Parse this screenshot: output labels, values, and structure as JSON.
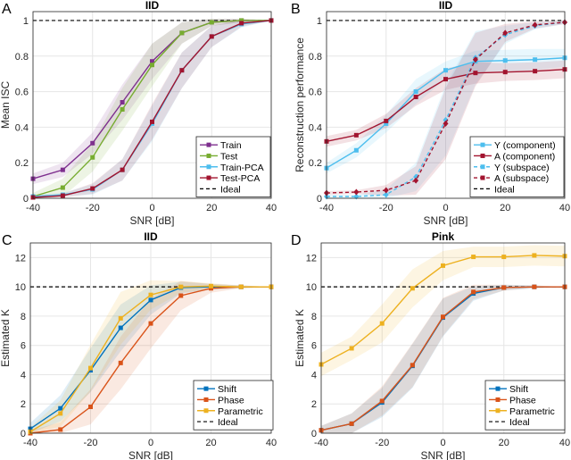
{
  "chart_data": [
    {
      "panel": "A",
      "type": "line",
      "title": "IID",
      "xlabel": "SNR [dB]",
      "ylabel": "Mean ISC",
      "xlim": [
        -40,
        40
      ],
      "ylim": [
        0,
        1.05
      ],
      "xticks": [
        -40,
        -20,
        0,
        20,
        40
      ],
      "yticks": [
        0,
        0.2,
        0.4,
        0.6,
        0.8,
        1
      ],
      "grid": true,
      "legend": "bottom-right",
      "ideal": 1,
      "ideal_label": "Ideal",
      "x": [
        -40,
        -30,
        -20,
        -10,
        0,
        10,
        20,
        30,
        40
      ],
      "series": [
        {
          "name": "Train",
          "color": "#7e2f8e",
          "dash": false,
          "marker": "square",
          "values": [
            0.11,
            0.16,
            0.31,
            0.54,
            0.77,
            0.93,
            0.99,
            1.0,
            1.0
          ],
          "band": [
            0.03,
            0.04,
            0.06,
            0.1,
            0.1,
            0.06,
            0.02,
            0.01,
            0
          ]
        },
        {
          "name": "Test",
          "color": "#77ac30",
          "dash": false,
          "marker": "square",
          "values": [
            0.01,
            0.06,
            0.23,
            0.5,
            0.75,
            0.93,
            0.99,
            1.0,
            1.0
          ],
          "band": [
            0.02,
            0.05,
            0.08,
            0.12,
            0.12,
            0.06,
            0.02,
            0.01,
            0
          ]
        },
        {
          "name": "Train-PCA",
          "color": "#4dbeee",
          "dash": false,
          "marker": "square",
          "values": [
            0.01,
            0.02,
            0.05,
            0.16,
            0.42,
            0.72,
            0.91,
            0.98,
            1.0
          ],
          "band": [
            0.01,
            0.01,
            0.03,
            0.06,
            0.1,
            0.1,
            0.06,
            0.02,
            0
          ]
        },
        {
          "name": "Test-PCA",
          "color": "#a2142f",
          "dash": false,
          "marker": "square",
          "values": [
            0.005,
            0.015,
            0.055,
            0.16,
            0.43,
            0.72,
            0.91,
            0.985,
            1.0
          ],
          "band": [
            0.01,
            0.01,
            0.03,
            0.06,
            0.1,
            0.1,
            0.06,
            0.02,
            0
          ]
        }
      ]
    },
    {
      "panel": "B",
      "type": "line",
      "title": "IID",
      "xlabel": "SNR [dB]",
      "ylabel": "Reconstruction performance",
      "xlim": [
        -40,
        40
      ],
      "ylim": [
        0,
        1.05
      ],
      "xticks": [
        -40,
        -20,
        0,
        20,
        40
      ],
      "yticks": [
        0,
        0.2,
        0.4,
        0.6,
        0.8,
        1
      ],
      "grid": true,
      "legend": "bottom-right",
      "ideal": 1,
      "ideal_label": "Ideal",
      "x": [
        -40,
        -30,
        -20,
        -10,
        0,
        10,
        20,
        30,
        40
      ],
      "series": [
        {
          "name": "Y (component)",
          "color": "#4dbeee",
          "dash": false,
          "marker": "square",
          "values": [
            0.17,
            0.27,
            0.42,
            0.6,
            0.72,
            0.77,
            0.775,
            0.78,
            0.79
          ],
          "band": [
            0.03,
            0.04,
            0.05,
            0.07,
            0.05,
            0.06,
            0.06,
            0.06,
            0.05
          ]
        },
        {
          "name": "A (component)",
          "color": "#a2142f",
          "dash": false,
          "marker": "square",
          "values": [
            0.32,
            0.355,
            0.435,
            0.57,
            0.67,
            0.705,
            0.71,
            0.715,
            0.725
          ],
          "band": [
            0.03,
            0.03,
            0.04,
            0.05,
            0.06,
            0.06,
            0.05,
            0.05,
            0.05
          ]
        },
        {
          "name": "Y (subspace)",
          "color": "#4dbeee",
          "dash": true,
          "marker": "diamond",
          "values": [
            0.01,
            0.01,
            0.02,
            0.12,
            0.44,
            0.79,
            0.92,
            0.97,
            0.99
          ],
          "band": [
            0.01,
            0.01,
            0.03,
            0.08,
            0.2,
            0.15,
            0.05,
            0.02,
            0.01
          ]
        },
        {
          "name": "A (subspace)",
          "color": "#a2142f",
          "dash": true,
          "marker": "diamond",
          "values": [
            0.03,
            0.035,
            0.045,
            0.1,
            0.42,
            0.78,
            0.93,
            0.975,
            0.99
          ],
          "band": [
            0.01,
            0.01,
            0.03,
            0.08,
            0.2,
            0.15,
            0.05,
            0.02,
            0.01
          ]
        }
      ]
    },
    {
      "panel": "C",
      "type": "line",
      "title": "IID",
      "xlabel": "SNR [dB]",
      "ylabel": "Estimated K",
      "xlim": [
        -40,
        40
      ],
      "ylim": [
        0,
        13
      ],
      "xticks": [
        -40,
        -20,
        0,
        20,
        40
      ],
      "yticks": [
        0,
        2,
        4,
        6,
        8,
        10,
        12
      ],
      "grid": true,
      "legend": "bottom-right",
      "ideal": 10,
      "ideal_label": "Ideal",
      "x": [
        -40,
        -30,
        -20,
        -10,
        0,
        10,
        20,
        30,
        40
      ],
      "series": [
        {
          "name": "Shift",
          "color": "#0072bd",
          "dash": false,
          "marker": "square",
          "values": [
            0.3,
            1.7,
            4.3,
            7.2,
            9.1,
            9.95,
            10.0,
            10.0,
            10.0
          ],
          "band": [
            0.4,
            0.9,
            1.5,
            1.6,
            1.0,
            0.4,
            0.2,
            0.1,
            0
          ]
        },
        {
          "name": "Phase",
          "color": "#d95319",
          "dash": false,
          "marker": "square",
          "values": [
            0.0,
            0.25,
            1.8,
            4.8,
            7.5,
            9.4,
            9.9,
            10.0,
            10.0
          ],
          "band": [
            0.2,
            0.5,
            1.2,
            1.8,
            1.7,
            1.0,
            0.3,
            0.1,
            0
          ]
        },
        {
          "name": "Parametric",
          "color": "#edb120",
          "dash": false,
          "marker": "square",
          "values": [
            0.1,
            1.35,
            4.45,
            7.85,
            9.45,
            10.0,
            10.05,
            10.0,
            10.0
          ],
          "band": [
            0.3,
            0.9,
            1.6,
            1.8,
            1.0,
            0.4,
            0.2,
            0.1,
            0
          ]
        }
      ]
    },
    {
      "panel": "D",
      "type": "line",
      "title": "Pink",
      "xlabel": "SNR [dB]",
      "ylabel": "Estimated K",
      "xlim": [
        -40,
        40
      ],
      "ylim": [
        0,
        13
      ],
      "xticks": [
        -40,
        -20,
        0,
        20,
        40
      ],
      "yticks": [
        0,
        2,
        4,
        6,
        8,
        10,
        12
      ],
      "grid": true,
      "legend": "bottom-right",
      "ideal": 10,
      "ideal_label": "Ideal",
      "x": [
        -40,
        -30,
        -20,
        -10,
        0,
        10,
        20,
        30,
        40
      ],
      "series": [
        {
          "name": "Shift",
          "color": "#0072bd",
          "dash": false,
          "marker": "square",
          "values": [
            0.2,
            0.65,
            2.1,
            4.6,
            7.9,
            9.55,
            9.95,
            10.0,
            10.0
          ],
          "band": [
            0.3,
            0.7,
            1.0,
            1.5,
            1.3,
            0.5,
            0.2,
            0.1,
            0
          ]
        },
        {
          "name": "Phase",
          "color": "#d95319",
          "dash": false,
          "marker": "square",
          "values": [
            0.2,
            0.65,
            2.2,
            4.65,
            7.95,
            9.65,
            9.95,
            10.0,
            10.0
          ],
          "band": [
            0.3,
            0.7,
            1.0,
            1.5,
            1.3,
            0.5,
            0.2,
            0.1,
            0
          ]
        },
        {
          "name": "Parametric",
          "color": "#edb120",
          "dash": false,
          "marker": "square",
          "values": [
            4.7,
            5.8,
            7.5,
            9.9,
            11.45,
            12.05,
            12.05,
            12.15,
            12.1
          ],
          "band": [
            0.8,
            0.8,
            1.3,
            1.3,
            1.0,
            0.7,
            0.7,
            0.7,
            0.7
          ]
        }
      ]
    }
  ]
}
